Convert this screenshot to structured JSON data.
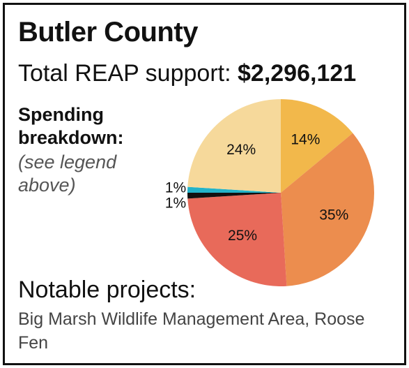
{
  "card": {
    "county": "Butler County",
    "total_label": "Total REAP support:",
    "total_amount": "$2,296,121",
    "spending_heading": "Spending breakdown:",
    "spending_note": "(see legend above)",
    "projects_heading": "Notable projects:",
    "projects_list": "Big Marsh Wildlife Management Area, Roose Fen"
  },
  "chart_data": {
    "type": "pie",
    "start_angle_deg": 0,
    "direction": "clockwise",
    "slices": [
      {
        "label": "14%",
        "value": 14,
        "color": "#f2b84b"
      },
      {
        "label": "35%",
        "value": 35,
        "color": "#ec8d4e"
      },
      {
        "label": "25%",
        "value": 25,
        "color": "#e86a5a"
      },
      {
        "label": "1%",
        "value": 1,
        "color": "#111111"
      },
      {
        "label": "1%",
        "value": 1,
        "color": "#23b3c9"
      },
      {
        "label": "24%",
        "value": 24,
        "color": "#f6d99b"
      }
    ]
  }
}
